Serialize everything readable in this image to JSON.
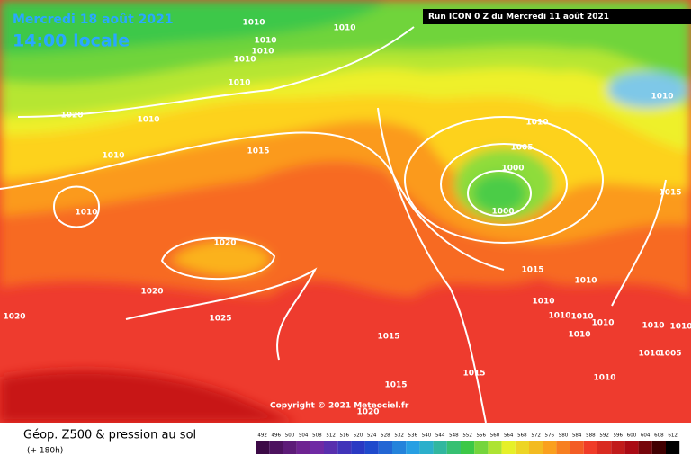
{
  "header": {
    "date": "Mercredi 18 août 2021",
    "time": "14:00 locale",
    "run": "Run ICON 0 Z du Mercredi 11 août 2021"
  },
  "copyright": "Copyright © 2021 Meteociel.fr",
  "footer": {
    "title": "Géop. Z500 & pression au sol",
    "lead": "(+ 180h)"
  },
  "scale": [
    492,
    496,
    500,
    504,
    508,
    512,
    516,
    520,
    524,
    528,
    532,
    536,
    540,
    544,
    548,
    552,
    556,
    560,
    564,
    568,
    572,
    576,
    580,
    584,
    588,
    592,
    596,
    600,
    604,
    608,
    612
  ],
  "isobars": [
    "1010",
    "1010",
    "1010",
    "1010",
    "1010",
    "1010",
    "1020",
    "1010",
    "1010",
    "1010",
    "1005",
    "1015",
    "1010",
    "1000",
    "1010",
    "1000",
    "1015",
    "1020",
    "1015",
    "1010",
    "1020",
    "1010",
    "1020",
    "1010",
    "1010",
    "1025",
    "1010",
    "1010",
    "1010",
    "1015",
    "1010",
    "1010",
    "1005",
    "1010",
    "1015",
    "1015",
    "1020"
  ]
}
